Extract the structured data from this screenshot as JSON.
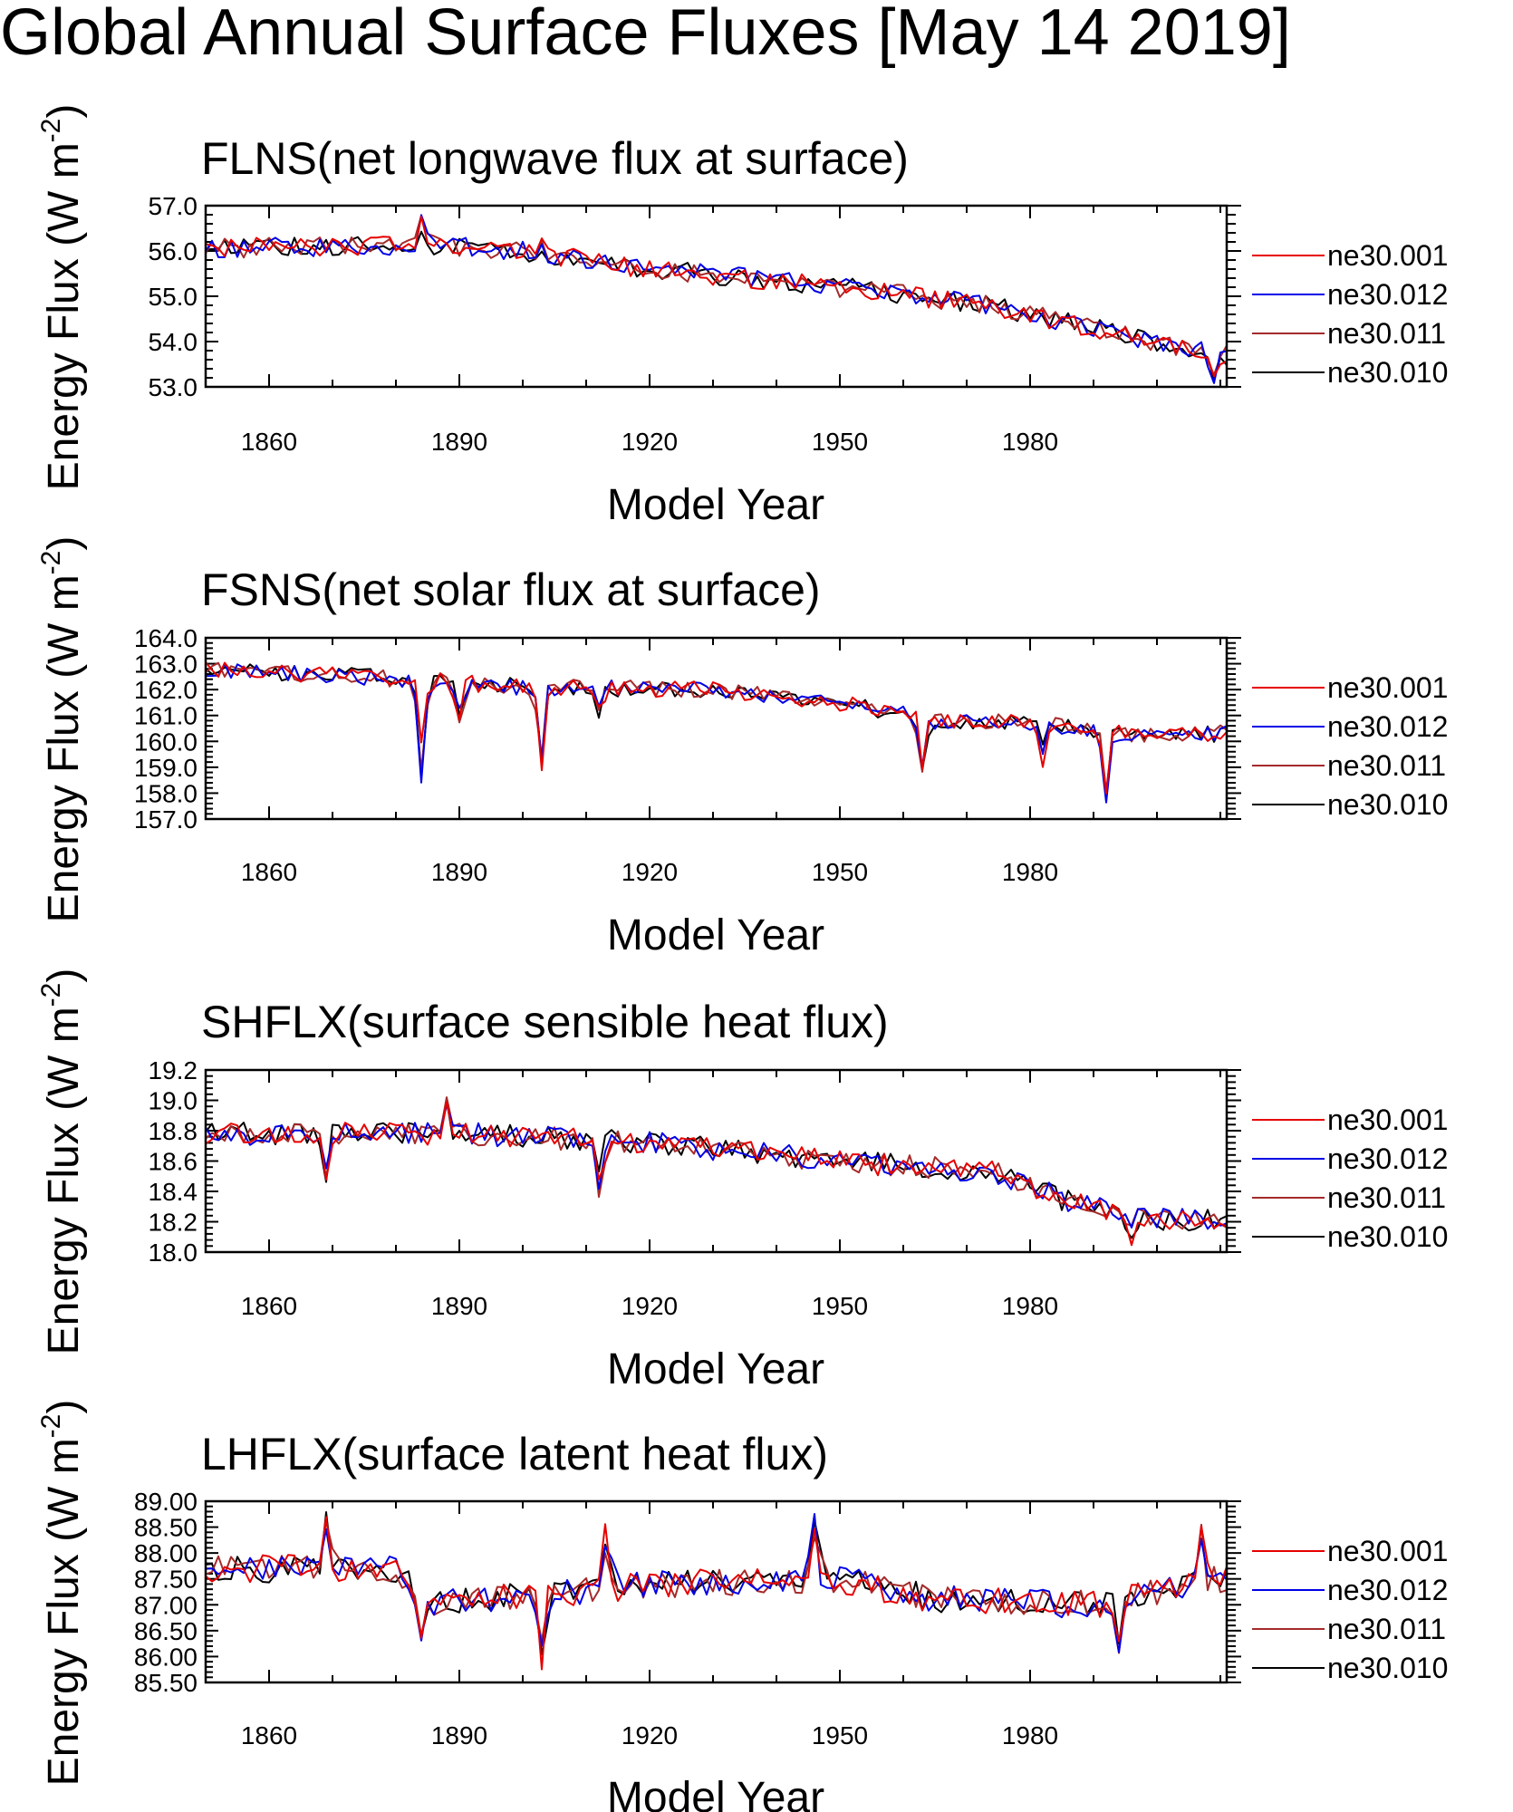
{
  "title": "Global Annual Surface Fluxes [May 14 2019]",
  "colors": {
    "ne30.001": "#e60000",
    "ne30.012": "#0000e6",
    "ne30.011": "#a52a2a",
    "ne30.010": "#000000"
  },
  "chart_data": [
    {
      "type": "line",
      "title": "FLNS(net longwave flux at surface)",
      "xlabel": "Model Year",
      "ylabel": "Energy Flux (W m",
      "ylabel_sup": "-2",
      "ylabel_close": ")",
      "xlim": [
        1850,
        2011
      ],
      "ylim": [
        53.0,
        57.0
      ],
      "xticks": [
        "1860",
        "1890",
        "1920",
        "1950",
        "1980"
      ],
      "yticks": [
        "53.0",
        "54.0",
        "55.0",
        "56.0",
        "57.0"
      ],
      "legend": [
        "ne30.001",
        "ne30.012",
        "ne30.011",
        "ne30.010"
      ],
      "trend": [
        [
          1850,
          56.05
        ],
        [
          1885,
          56.15
        ],
        [
          1900,
          56.0
        ],
        [
          1920,
          55.6
        ],
        [
          1950,
          55.2
        ],
        [
          1960,
          55.05
        ],
        [
          1975,
          54.75
        ],
        [
          1990,
          54.3
        ],
        [
          2000,
          54.0
        ],
        [
          2011,
          53.7
        ]
      ],
      "noise": 0.22,
      "dips": [
        [
          1884,
          0.45
        ],
        [
          1903,
          0.25
        ],
        [
          2009,
          -0.55
        ]
      ]
    },
    {
      "type": "line",
      "title": "FSNS(net solar flux at surface)",
      "xlabel": "Model Year",
      "ylabel": "Energy Flux (W m",
      "ylabel_sup": "-2",
      "ylabel_close": ")",
      "xlim": [
        1850,
        2011
      ],
      "ylim": [
        157.0,
        164.0
      ],
      "xticks": [
        "1860",
        "1890",
        "1920",
        "1950",
        "1980"
      ],
      "yticks": [
        "157.0",
        "158.0",
        "159.0",
        "160.0",
        "161.0",
        "162.0",
        "163.0",
        "164.0"
      ],
      "legend": [
        "ne30.001",
        "ne30.012",
        "ne30.011",
        "ne30.010"
      ],
      "trend": [
        [
          1850,
          162.8
        ],
        [
          1875,
          162.5
        ],
        [
          1900,
          162.1
        ],
        [
          1930,
          162.0
        ],
        [
          1950,
          161.5
        ],
        [
          1965,
          160.8
        ],
        [
          1980,
          160.7
        ],
        [
          1995,
          160.3
        ],
        [
          2011,
          160.3
        ]
      ],
      "noise": 0.32,
      "dips": [
        [
          1884,
          -3.4
        ],
        [
          1890,
          -1.6
        ],
        [
          1903,
          -2.9
        ],
        [
          1912,
          -0.8
        ],
        [
          1963,
          -2.2
        ],
        [
          1982,
          -1.4
        ],
        [
          1992,
          -2.5
        ]
      ]
    },
    {
      "type": "line",
      "title": "SHFLX(surface sensible heat flux)",
      "xlabel": "Model Year",
      "ylabel": "Energy Flux (W m",
      "ylabel_sup": "-2",
      "ylabel_close": ")",
      "xlim": [
        1850,
        2011
      ],
      "ylim": [
        18.0,
        19.2
      ],
      "xticks": [
        "1860",
        "1890",
        "1920",
        "1950",
        "1980"
      ],
      "yticks": [
        "18.0",
        "18.2",
        "18.4",
        "18.6",
        "18.8",
        "19.0",
        "19.2"
      ],
      "legend": [
        "ne30.001",
        "ne30.012",
        "ne30.011",
        "ne30.010"
      ],
      "trend": [
        [
          1850,
          18.78
        ],
        [
          1890,
          18.78
        ],
        [
          1920,
          18.72
        ],
        [
          1950,
          18.6
        ],
        [
          1975,
          18.52
        ],
        [
          1985,
          18.35
        ],
        [
          2000,
          18.22
        ],
        [
          2011,
          18.2
        ]
      ],
      "noise": 0.075,
      "dips": [
        [
          1869,
          -0.3
        ],
        [
          1888,
          0.2
        ],
        [
          1912,
          -0.3
        ],
        [
          1996,
          -0.15
        ]
      ]
    },
    {
      "type": "line",
      "title": "LHFLX(surface latent heat flux)",
      "xlabel": "Model Year",
      "ylabel": "Energy Flux (W m",
      "ylabel_sup": "-2",
      "ylabel_close": ")",
      "xlim": [
        1850,
        2011
      ],
      "ylim": [
        85.5,
        89.0
      ],
      "xticks": [
        "1860",
        "1890",
        "1920",
        "1950",
        "1980"
      ],
      "yticks": [
        "85.50",
        "86.00",
        "86.50",
        "87.00",
        "87.50",
        "88.00",
        "88.50",
        "89.00"
      ],
      "legend": [
        "ne30.001",
        "ne30.012",
        "ne30.011",
        "ne30.010"
      ],
      "trend": [
        [
          1850,
          87.7
        ],
        [
          1880,
          87.7
        ],
        [
          1886,
          87.0
        ],
        [
          1920,
          87.4
        ],
        [
          1950,
          87.5
        ],
        [
          1965,
          87.1
        ],
        [
          1990,
          87.0
        ],
        [
          2005,
          87.4
        ],
        [
          2011,
          87.5
        ]
      ],
      "noise": 0.27,
      "dips": [
        [
          1869,
          1.1
        ],
        [
          1884,
          -1.1
        ],
        [
          1903,
          -1.3
        ],
        [
          1913,
          1.1
        ],
        [
          1946,
          1.3
        ],
        [
          1994,
          -0.8
        ],
        [
          2007,
          1.0
        ]
      ]
    }
  ]
}
